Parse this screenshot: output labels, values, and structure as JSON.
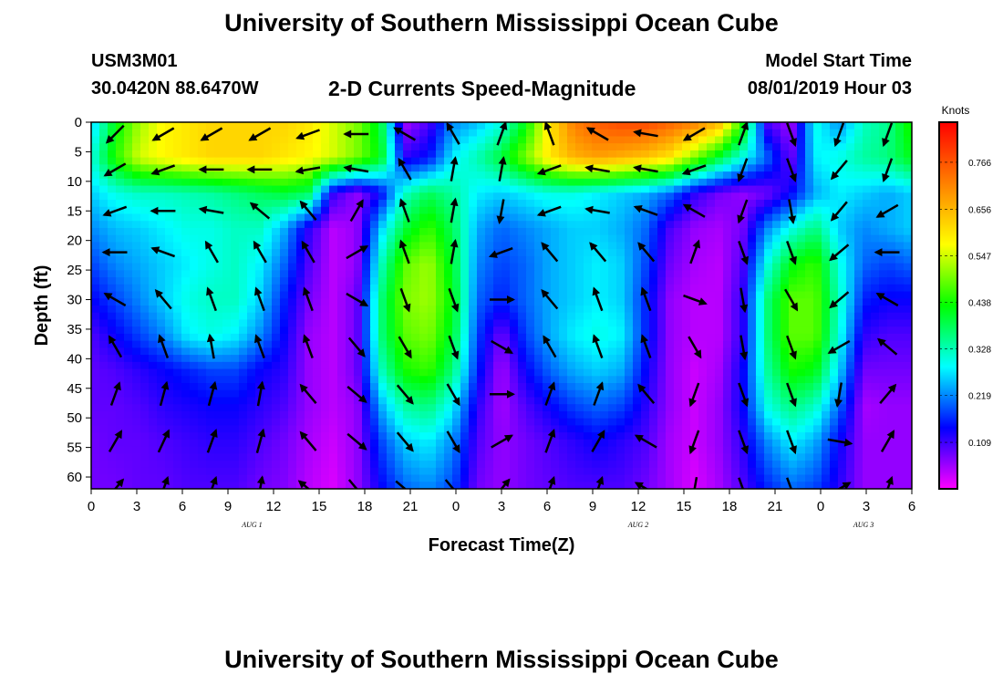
{
  "header": {
    "title": "University of Southern Mississippi Ocean Cube",
    "station_id": "USM3M01",
    "station_location": "30.0420N 88.6470W",
    "chart_title": "2-D Currents Speed-Magnitude",
    "start_label": "Model Start Time",
    "start_value": "08/01/2019 Hour 03"
  },
  "footer": {
    "title": "University of Southern Mississippi Ocean Cube"
  },
  "colors": {
    "scale": [
      "#ff00ff",
      "#0000ff",
      "#00ffff",
      "#00ff00",
      "#ffff00",
      "#ff8000",
      "#ff0000"
    ],
    "arrow": "#000000",
    "frame": "#000000"
  },
  "chart_data": {
    "type": "heatmap",
    "title": "2-D Currents Speed-Magnitude",
    "xlabel": "Forecast Time(Z)",
    "ylabel": "Depth (ft)",
    "x_tick_labels": [
      "0",
      "3",
      "6",
      "9",
      "12",
      "15",
      "18",
      "21",
      "0",
      "3",
      "6",
      "9",
      "12",
      "15",
      "18",
      "21",
      "0",
      "3",
      "6"
    ],
    "x_range_hours": [
      0,
      51
    ],
    "date_labels": [
      {
        "label": "AUG 1",
        "hour": 10
      },
      {
        "label": "AUG 2",
        "hour": 34
      },
      {
        "label": "AUG 3",
        "hour": 48
      }
    ],
    "y_ticks": [
      0,
      5,
      10,
      15,
      20,
      25,
      30,
      35,
      40,
      45,
      50,
      55,
      60
    ],
    "ylim": [
      0,
      62
    ],
    "y_inverted": true,
    "colorbar": {
      "unit": "Knots",
      "ticks": [
        "0.766",
        "0.656",
        "0.547",
        "0.438",
        "0.328",
        "0.219",
        "0.109"
      ],
      "range": [
        0,
        0.86
      ]
    },
    "speed_field": {
      "description_units": "knots",
      "depths_ft": [
        0,
        6,
        12,
        18,
        24,
        30,
        36,
        42,
        48,
        54,
        62
      ],
      "hours": [
        0,
        1.5,
        3,
        4.5,
        6,
        7.5,
        9,
        10.5,
        12,
        13.5,
        15,
        16.5,
        18,
        19.5,
        21,
        22.5,
        24,
        25.5,
        27,
        28.5,
        30,
        31.5,
        33,
        34.5,
        36,
        37.5,
        39,
        40.5,
        42,
        43.5,
        45,
        46.5,
        48,
        49.5,
        51
      ],
      "values": [
        [
          0.25,
          0.42,
          0.52,
          0.58,
          0.6,
          0.62,
          0.62,
          0.62,
          0.62,
          0.6,
          0.55,
          0.5,
          0.4,
          0.05,
          0.1,
          0.22,
          0.25,
          0.3,
          0.42,
          0.6,
          0.72,
          0.76,
          0.78,
          0.78,
          0.75,
          0.72,
          0.66,
          0.45,
          0.1,
          0.05,
          0.3,
          0.22,
          0.32,
          0.35,
          0.45
        ],
        [
          0.3,
          0.45,
          0.55,
          0.58,
          0.6,
          0.62,
          0.62,
          0.62,
          0.6,
          0.58,
          0.55,
          0.5,
          0.42,
          0.12,
          0.15,
          0.28,
          0.33,
          0.4,
          0.5,
          0.6,
          0.66,
          0.68,
          0.66,
          0.64,
          0.6,
          0.5,
          0.4,
          0.3,
          0.2,
          0.08,
          0.28,
          0.3,
          0.34,
          0.36,
          0.42
        ],
        [
          0.26,
          0.3,
          0.32,
          0.32,
          0.33,
          0.34,
          0.36,
          0.38,
          0.4,
          0.38,
          0.12,
          0.06,
          0.14,
          0.32,
          0.38,
          0.34,
          0.28,
          0.26,
          0.28,
          0.3,
          0.3,
          0.28,
          0.26,
          0.24,
          0.2,
          0.12,
          0.08,
          0.06,
          0.08,
          0.14,
          0.24,
          0.28,
          0.26,
          0.24,
          0.26
        ],
        [
          0.22,
          0.25,
          0.26,
          0.28,
          0.3,
          0.3,
          0.32,
          0.32,
          0.24,
          0.12,
          0.04,
          0.06,
          0.26,
          0.4,
          0.46,
          0.38,
          0.24,
          0.2,
          0.22,
          0.24,
          0.26,
          0.26,
          0.24,
          0.2,
          0.1,
          0.06,
          0.05,
          0.08,
          0.22,
          0.3,
          0.36,
          0.26,
          0.22,
          0.24,
          0.26
        ],
        [
          0.18,
          0.22,
          0.24,
          0.26,
          0.28,
          0.3,
          0.32,
          0.28,
          0.2,
          0.1,
          0.04,
          0.06,
          0.32,
          0.48,
          0.52,
          0.4,
          0.22,
          0.18,
          0.2,
          0.24,
          0.26,
          0.28,
          0.26,
          0.18,
          0.08,
          0.05,
          0.04,
          0.1,
          0.3,
          0.42,
          0.46,
          0.3,
          0.2,
          0.18,
          0.2
        ],
        [
          0.14,
          0.18,
          0.22,
          0.26,
          0.3,
          0.32,
          0.32,
          0.26,
          0.16,
          0.08,
          0.04,
          0.08,
          0.36,
          0.5,
          0.52,
          0.42,
          0.2,
          0.16,
          0.2,
          0.24,
          0.26,
          0.28,
          0.26,
          0.16,
          0.06,
          0.04,
          0.04,
          0.12,
          0.36,
          0.48,
          0.48,
          0.32,
          0.16,
          0.14,
          0.14
        ],
        [
          0.1,
          0.14,
          0.18,
          0.22,
          0.28,
          0.3,
          0.28,
          0.22,
          0.14,
          0.06,
          0.04,
          0.08,
          0.36,
          0.48,
          0.5,
          0.4,
          0.18,
          0.08,
          0.18,
          0.24,
          0.28,
          0.3,
          0.28,
          0.16,
          0.06,
          0.04,
          0.04,
          0.12,
          0.36,
          0.48,
          0.48,
          0.3,
          0.12,
          0.1,
          0.1
        ],
        [
          0.09,
          0.1,
          0.12,
          0.14,
          0.16,
          0.18,
          0.18,
          0.14,
          0.12,
          0.06,
          0.04,
          0.08,
          0.32,
          0.44,
          0.46,
          0.36,
          0.16,
          0.05,
          0.14,
          0.2,
          0.24,
          0.26,
          0.24,
          0.14,
          0.06,
          0.03,
          0.05,
          0.14,
          0.34,
          0.44,
          0.42,
          0.26,
          0.08,
          0.08,
          0.08
        ],
        [
          0.09,
          0.09,
          0.1,
          0.12,
          0.13,
          0.14,
          0.14,
          0.12,
          0.1,
          0.06,
          0.04,
          0.06,
          0.24,
          0.34,
          0.36,
          0.28,
          0.12,
          0.05,
          0.1,
          0.14,
          0.18,
          0.2,
          0.18,
          0.12,
          0.06,
          0.03,
          0.06,
          0.14,
          0.3,
          0.36,
          0.32,
          0.2,
          0.05,
          0.06,
          0.06
        ],
        [
          0.08,
          0.09,
          0.09,
          0.1,
          0.11,
          0.12,
          0.12,
          0.1,
          0.08,
          0.05,
          0.03,
          0.06,
          0.18,
          0.26,
          0.28,
          0.22,
          0.1,
          0.06,
          0.08,
          0.1,
          0.12,
          0.14,
          0.12,
          0.1,
          0.05,
          0.03,
          0.06,
          0.12,
          0.22,
          0.28,
          0.24,
          0.14,
          0.06,
          0.06,
          0.06
        ],
        [
          0.08,
          0.08,
          0.09,
          0.09,
          0.1,
          0.1,
          0.1,
          0.08,
          0.07,
          0.04,
          0.02,
          0.06,
          0.14,
          0.2,
          0.22,
          0.18,
          0.08,
          0.06,
          0.08,
          0.09,
          0.1,
          0.1,
          0.1,
          0.08,
          0.05,
          0.02,
          0.05,
          0.1,
          0.16,
          0.2,
          0.18,
          0.12,
          0.06,
          0.06,
          0.06
        ]
      ]
    },
    "current_vectors": {
      "description": "direction in degrees clockwise from up (toward), one row per depth",
      "hours": [
        1.5,
        4.5,
        7.5,
        10.5,
        13.5,
        16.5,
        19.5,
        22.5,
        25.5,
        28.5,
        31.5,
        34.5,
        37.5,
        40.5,
        43.5,
        46.5,
        49.5
      ],
      "depths_ft": [
        2,
        8,
        15,
        22,
        30,
        38,
        46,
        54,
        62
      ],
      "directions_deg": [
        [
          225,
          240,
          240,
          240,
          250,
          270,
          300,
          330,
          20,
          340,
          300,
          280,
          240,
          20,
          160,
          200,
          200
        ],
        [
          240,
          250,
          270,
          270,
          260,
          280,
          330,
          10,
          10,
          250,
          280,
          280,
          250,
          200,
          160,
          220,
          200
        ],
        [
          250,
          270,
          280,
          310,
          320,
          30,
          340,
          10,
          190,
          250,
          280,
          290,
          300,
          200,
          170,
          220,
          240
        ],
        [
          270,
          290,
          330,
          330,
          330,
          60,
          340,
          10,
          250,
          320,
          320,
          320,
          20,
          160,
          160,
          230,
          270
        ],
        [
          300,
          320,
          340,
          340,
          340,
          120,
          160,
          160,
          90,
          320,
          340,
          340,
          110,
          170,
          150,
          230,
          300
        ],
        [
          330,
          340,
          350,
          340,
          340,
          140,
          150,
          160,
          120,
          330,
          340,
          340,
          150,
          170,
          160,
          240,
          310
        ],
        [
          20,
          15,
          15,
          10,
          320,
          130,
          140,
          150,
          90,
          20,
          20,
          320,
          200,
          160,
          160,
          190,
          40
        ],
        [
          30,
          25,
          20,
          15,
          320,
          130,
          140,
          150,
          60,
          20,
          30,
          300,
          200,
          160,
          160,
          100,
          30
        ],
        [
          40,
          20,
          20,
          10,
          310,
          140,
          130,
          140,
          40,
          20,
          20,
          300,
          190,
          160,
          160,
          60,
          20
        ]
      ]
    }
  }
}
